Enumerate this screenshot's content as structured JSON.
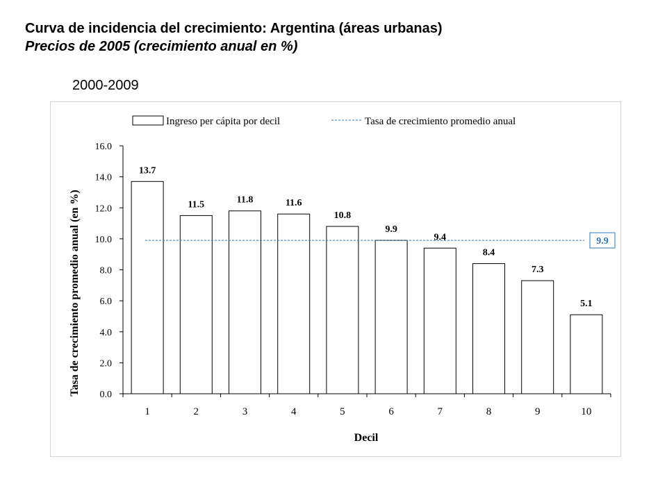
{
  "header": {
    "title": "Curva de incidencia del crecimiento: Argentina (áreas urbanas)",
    "subtitle": "Precios de 2005 (crecimiento anual en %)",
    "period": "2000-2009"
  },
  "chart_data": {
    "type": "bar",
    "categories": [
      "1",
      "2",
      "3",
      "4",
      "5",
      "6",
      "7",
      "8",
      "9",
      "10"
    ],
    "values": [
      13.7,
      11.5,
      11.8,
      11.6,
      10.8,
      9.9,
      9.4,
      8.4,
      7.3,
      5.1
    ],
    "data_labels": [
      "13.7",
      "11.5",
      "11.8",
      "11.6",
      "10.8",
      "9.9",
      "9.4",
      "8.4",
      "7.3",
      "5.1"
    ],
    "series": [
      {
        "name": "Ingreso per cápita por decil",
        "values": [
          13.7,
          11.5,
          11.8,
          11.6,
          10.8,
          9.9,
          9.4,
          8.4,
          7.3,
          5.1
        ]
      }
    ],
    "reference_line": {
      "name": "Tasa de crecimiento promedio anual",
      "value": 9.9,
      "label": "9.9",
      "color": "#2e75b6"
    },
    "xlabel": "Decil",
    "ylabel": "Tasa de crecimiento promedio anual (en %)",
    "ylim": [
      0,
      16
    ],
    "yticks": [
      "0.0",
      "2.0",
      "4.0",
      "6.0",
      "8.0",
      "10.0",
      "12.0",
      "14.0",
      "16.0"
    ],
    "legend_position": "top",
    "grid": false,
    "bar_fill": "#ffffff",
    "bar_stroke": "#000000"
  }
}
